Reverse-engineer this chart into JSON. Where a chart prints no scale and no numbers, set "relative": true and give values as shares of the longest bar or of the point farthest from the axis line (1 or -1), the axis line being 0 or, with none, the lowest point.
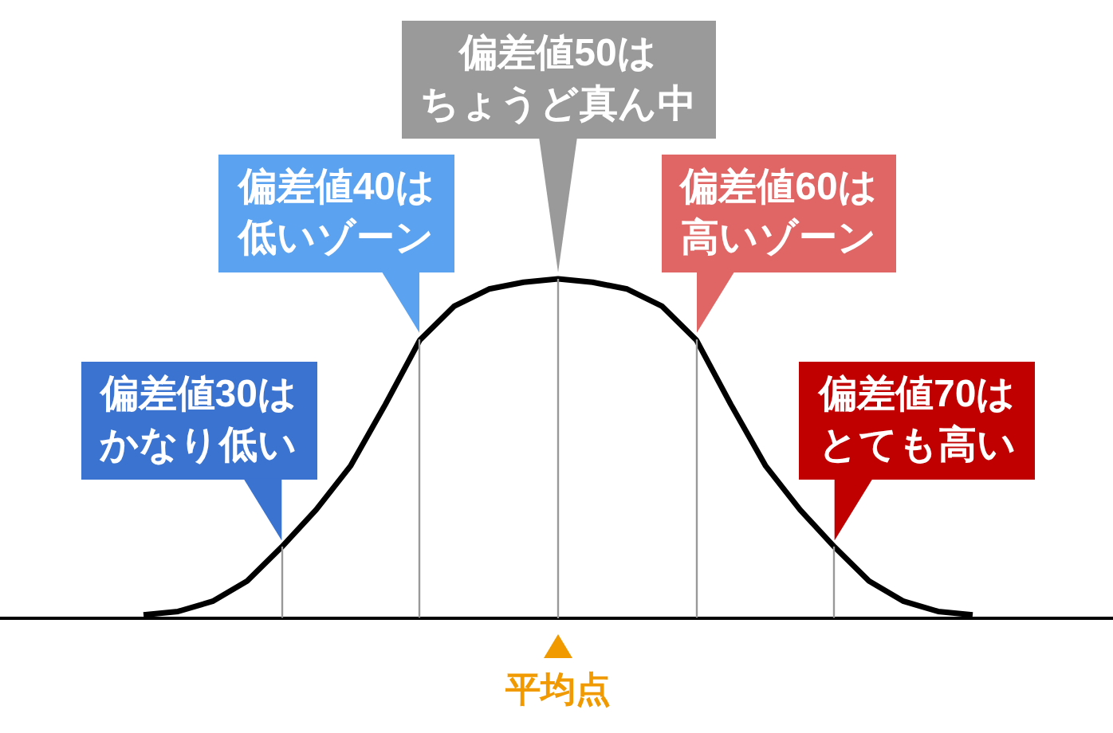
{
  "chart_data": {
    "type": "line",
    "relative": true,
    "tick_labels": false,
    "grid": "x",
    "marker": "none",
    "categories": [
      null,
      null,
      null,
      null,
      null,
      null,
      null,
      null,
      null,
      null,
      null,
      null,
      null,
      null,
      null,
      null,
      null,
      null,
      null,
      null,
      null,
      null,
      null,
      null,
      null
    ],
    "xlabel": "平均点",
    "series": [
      {
        "color": "#000000",
        "values": [
          0.01,
          0.02,
          0.05,
          0.11,
          0.21,
          0.32,
          0.45,
          0.63,
          0.82,
          0.92,
          0.97,
          0.99,
          1,
          0.99,
          0.97,
          0.92,
          0.82,
          0.63,
          0.45,
          0.32,
          0.21,
          0.11,
          0.05,
          0.02,
          0.01
        ]
      }
    ],
    "annotations": [
      "偏差値30は",
      "かなり低い",
      "偏差値40は",
      "低いゾーン",
      "偏差値50は",
      "ちょうど真ん中",
      "偏差値60は",
      "高いゾーン",
      "偏差値70は",
      "とても高い"
    ]
  }
}
